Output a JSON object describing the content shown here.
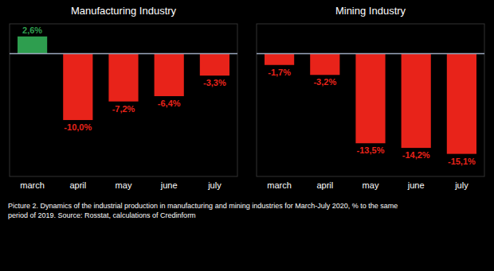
{
  "chart_data": [
    {
      "type": "bar",
      "title": "Manufacturing Industry",
      "categories": [
        "march",
        "april",
        "may",
        "june",
        "july"
      ],
      "values": [
        2.6,
        -10.0,
        -7.2,
        -6.4,
        -3.3
      ],
      "value_labels": [
        "2,6%",
        "-10,0%",
        "-7,2%",
        "-6,4%",
        "-3,3%"
      ],
      "colors": [
        "#2e9e4f",
        "#e8231a",
        "#e8231a",
        "#e8231a",
        "#e8231a"
      ],
      "ylim": [
        -18.5,
        4.5
      ],
      "yticks": [],
      "data_labels": true,
      "tick_labels": "x",
      "grid": false,
      "annotations": [
        "Picture 2. Dynamics of the industrial production in manufacturing and mining industries for March-July 2020, % to the same\nperiod of 2019. Source: Rosstat, calculations of Credinform"
      ]
    },
    {
      "type": "bar",
      "title": "Mining Industry",
      "categories": [
        "march",
        "april",
        "may",
        "june",
        "july"
      ],
      "values": [
        -1.7,
        -3.2,
        -13.5,
        -14.2,
        -15.1
      ],
      "value_labels": [
        "-1,7%",
        "-3,2%",
        "-13,5%",
        "-14,2%",
        "-15,1%"
      ],
      "colors": [
        "#e8231a",
        "#e8231a",
        "#e8231a",
        "#e8231a",
        "#e8231a"
      ],
      "ylim": [
        -18.5,
        4.5
      ],
      "yticks": [],
      "data_labels": true,
      "tick_labels": "x",
      "grid": false
    }
  ]
}
